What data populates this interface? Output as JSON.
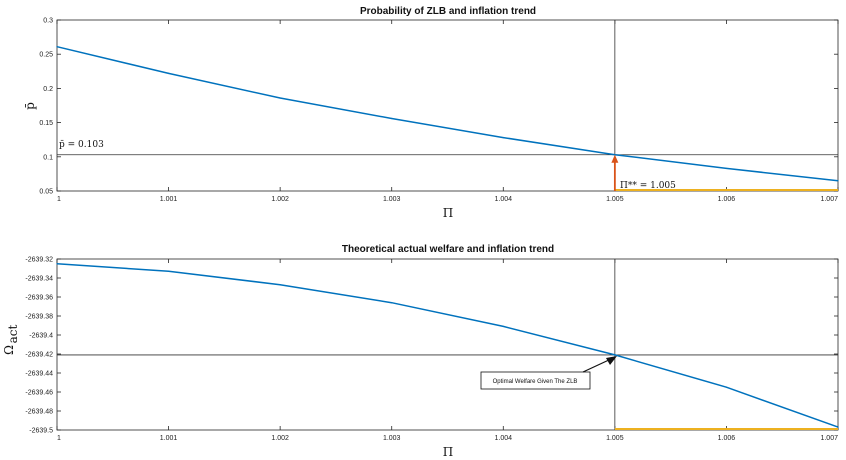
{
  "chart_data": [
    {
      "type": "line",
      "title": "Probability of ZLB and inflation trend",
      "xlabel": "Π",
      "ylabel": "p̄",
      "xlim": [
        1,
        1.007
      ],
      "ylim": [
        0.05,
        0.3
      ],
      "xticks": [
        "1",
        "1.001",
        "1.002",
        "1.003",
        "1.004",
        "1.005",
        "1.006",
        "1.007"
      ],
      "yticks": [
        "0.05",
        "0.1",
        "0.15",
        "0.2",
        "0.25",
        "0.3"
      ],
      "series": [
        {
          "color": "#0072bd",
          "x": [
            1,
            1.001,
            1.002,
            1.003,
            1.004,
            1.005,
            1.006,
            1.007
          ],
          "y": [
            0.261,
            0.222,
            0.186,
            0.156,
            0.128,
            0.103,
            0.083,
            0.065
          ]
        }
      ],
      "hline": 0.103,
      "vline": 1.005,
      "hline_label": "p̄ = 0.103",
      "vline_label": "Π** = 1.005",
      "arrow_color": "#d95319",
      "base_segment_color": "#edb120",
      "grid": false
    },
    {
      "type": "line",
      "title": "Theoretical actual welfare and inflation trend",
      "xlabel": "Π",
      "ylabel": "Ω",
      "ylabel_sub": "act",
      "xlim": [
        1,
        1.007
      ],
      "ylim": [
        -2639.5,
        -2639.32
      ],
      "xticks": [
        "1",
        "1.001",
        "1.002",
        "1.003",
        "1.004",
        "1.005",
        "1.006",
        "1.007"
      ],
      "yticks": [
        "-2639.32",
        "-2639.34",
        "-2639.36",
        "-2639.38",
        "-2639.4",
        "-2639.42",
        "-2639.44",
        "-2639.46",
        "-2639.48",
        "-2639.5"
      ],
      "series": [
        {
          "color": "#0072bd",
          "x": [
            1,
            1.001,
            1.002,
            1.003,
            1.004,
            1.005,
            1.006,
            1.007
          ],
          "y": [
            -2639.325,
            -2639.333,
            -2639.347,
            -2639.366,
            -2639.391,
            -2639.421,
            -2639.455,
            -2639.497
          ]
        }
      ],
      "hline": -2639.421,
      "vline": 1.005,
      "annotation": "Optimal Welfare Given The ZLB",
      "base_segment_color": "#edb120",
      "grid": false
    }
  ]
}
